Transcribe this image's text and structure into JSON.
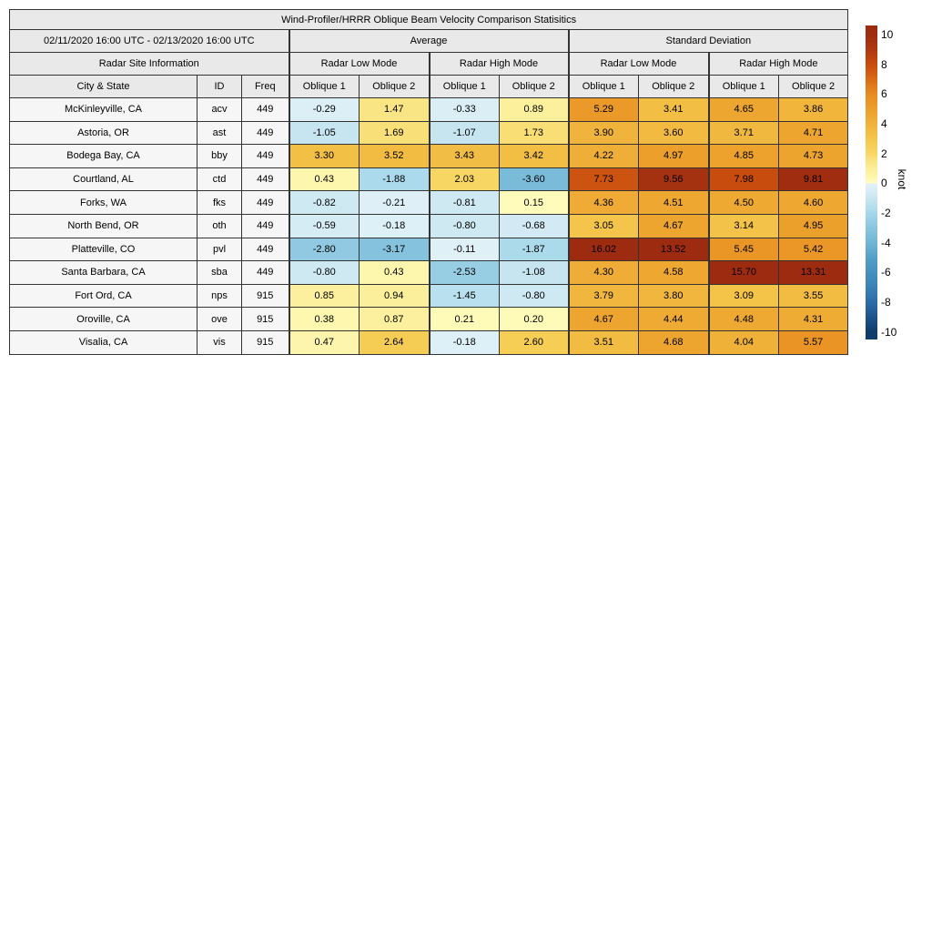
{
  "figure": {
    "title": "Wind-Profiler/HRRR Oblique Beam Velocity Comparison Statisitics",
    "date_range": "02/11/2020 16:00 UTC - 02/13/2020 16:00 UTC",
    "section_headers": {
      "average": "Average",
      "std": "Standard Deviation"
    },
    "mode_headers": {
      "site_info": "Radar Site Information",
      "low": "Radar Low Mode",
      "high": "Radar High Mode"
    },
    "column_headers": {
      "city": "City & State",
      "id": "ID",
      "freq": "Freq",
      "oblique1": "Oblique 1",
      "oblique2": "Oblique 2"
    }
  },
  "chart_data": {
    "type": "heatmap",
    "title": "Wind-Profiler/HRRR Oblique Beam Velocity Comparison Statisitics",
    "date_range": "02/11/2020 16:00 UTC - 02/13/2020 16:00 UTC",
    "value_column_groups": [
      "Average / Radar Low Mode / Oblique 1",
      "Average / Radar Low Mode / Oblique 2",
      "Average / Radar High Mode / Oblique 1",
      "Average / Radar High Mode / Oblique 2",
      "Standard Deviation / Radar Low Mode / Oblique 1",
      "Standard Deviation / Radar Low Mode / Oblique 2",
      "Standard Deviation / Radar High Mode / Oblique 1",
      "Standard Deviation / Radar High Mode / Oblique 2"
    ],
    "rows": [
      {
        "city": "McKinleyville, CA",
        "id": "acv",
        "freq": "449",
        "values": [
          -0.29,
          1.47,
          -0.33,
          0.89,
          5.29,
          3.41,
          4.65,
          3.86
        ]
      },
      {
        "city": "Astoria, OR",
        "id": "ast",
        "freq": "449",
        "values": [
          -1.05,
          1.69,
          -1.07,
          1.73,
          3.9,
          3.6,
          3.71,
          4.71
        ]
      },
      {
        "city": "Bodega Bay, CA",
        "id": "bby",
        "freq": "449",
        "values": [
          3.3,
          3.52,
          3.43,
          3.42,
          4.22,
          4.97,
          4.85,
          4.73
        ]
      },
      {
        "city": "Courtland, AL",
        "id": "ctd",
        "freq": "449",
        "values": [
          0.43,
          -1.88,
          2.03,
          -3.6,
          7.73,
          9.56,
          7.98,
          9.81
        ]
      },
      {
        "city": "Forks, WA",
        "id": "fks",
        "freq": "449",
        "values": [
          -0.82,
          -0.21,
          -0.81,
          0.15,
          4.36,
          4.51,
          4.5,
          4.6
        ]
      },
      {
        "city": "North Bend, OR",
        "id": "oth",
        "freq": "449",
        "values": [
          -0.59,
          -0.18,
          -0.8,
          -0.68,
          3.05,
          4.67,
          3.14,
          4.95
        ]
      },
      {
        "city": "Platteville, CO",
        "id": "pvl",
        "freq": "449",
        "values": [
          -2.8,
          -3.17,
          -0.11,
          -1.87,
          16.02,
          13.52,
          5.45,
          5.42
        ]
      },
      {
        "city": "Santa Barbara, CA",
        "id": "sba",
        "freq": "449",
        "values": [
          -0.8,
          0.43,
          -2.53,
          -1.08,
          4.3,
          4.58,
          15.7,
          13.31
        ]
      },
      {
        "city": "Fort Ord, CA",
        "id": "nps",
        "freq": "915",
        "values": [
          0.85,
          0.94,
          -1.45,
          -0.8,
          3.79,
          3.8,
          3.09,
          3.55
        ]
      },
      {
        "city": "Oroville, CA",
        "id": "ove",
        "freq": "915",
        "values": [
          0.38,
          0.87,
          0.21,
          0.2,
          4.67,
          4.44,
          4.48,
          4.31
        ]
      },
      {
        "city": "Visalia, CA",
        "id": "vis",
        "freq": "915",
        "values": [
          0.47,
          2.64,
          -0.18,
          2.6,
          3.51,
          4.68,
          4.04,
          5.57
        ]
      }
    ],
    "legend_position": "right",
    "vmin": -10,
    "vmax": 10
  },
  "colorbar": {
    "label": "knot",
    "ticks": [
      {
        "label": "10",
        "value": 10
      },
      {
        "label": "8",
        "value": 8
      },
      {
        "label": "6",
        "value": 6
      },
      {
        "label": "4",
        "value": 4
      },
      {
        "label": "2",
        "value": 2
      },
      {
        "label": "0",
        "value": 0
      },
      {
        "label": "-2",
        "value": -2
      },
      {
        "label": "-4",
        "value": -4
      },
      {
        "label": "-6",
        "value": -6
      },
      {
        "label": "-8",
        "value": -8
      },
      {
        "label": "-10",
        "value": -10
      }
    ]
  },
  "colors": {
    "header_bg": "#e9e9e9",
    "label_cell_bg": "#f6f6f6",
    "border": "#333333",
    "warm_anchors": [
      [
        0,
        "#fffdc2"
      ],
      [
        0.5,
        "#fdf5a9"
      ],
      [
        1,
        "#fcee9a"
      ],
      [
        1.5,
        "#fae483"
      ],
      [
        2,
        "#f8d765"
      ],
      [
        3,
        "#f4c64b"
      ],
      [
        4,
        "#f0b23a"
      ],
      [
        5,
        "#ec9f2b"
      ],
      [
        6,
        "#e78c21"
      ],
      [
        7,
        "#d96a16"
      ],
      [
        8,
        "#c84b0e"
      ],
      [
        9,
        "#ae380f"
      ],
      [
        10,
        "#9d2b10"
      ]
    ],
    "cool_anchors": [
      [
        -10,
        "#0e3c6b"
      ],
      [
        -9,
        "#1d5389"
      ],
      [
        -8,
        "#2c6da7"
      ],
      [
        -7,
        "#3a82b4"
      ],
      [
        -6,
        "#4590bd"
      ],
      [
        -5,
        "#55a0c9"
      ],
      [
        -4,
        "#6fb5d6"
      ],
      [
        -3,
        "#8ac5df"
      ],
      [
        -2,
        "#a6d8ea"
      ],
      [
        -1,
        "#c9e6f1"
      ],
      [
        -0.5,
        "#d8edf5"
      ],
      [
        0,
        "#e2f1f8"
      ]
    ]
  }
}
